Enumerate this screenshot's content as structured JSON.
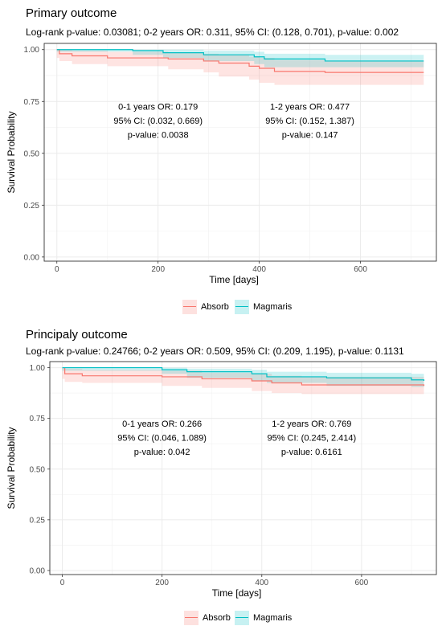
{
  "colors": {
    "absorb": "#F8766D",
    "magmaris": "#00BFC4",
    "grid": "#EBEBEB",
    "border": "#333333",
    "tick_text": "#4D4D4D"
  },
  "legend": {
    "items": [
      {
        "label": "Absorb",
        "color": "#F8766D"
      },
      {
        "label": "Magmaris",
        "color": "#00BFC4"
      }
    ]
  },
  "chart_data": [
    {
      "type": "line",
      "title": "Primary outcome",
      "subtitle": "Log-rank p-value: 0.03081;    0-2 years OR: 0.311, 95% CI: (0.128, 0.701), p-value: 0.002",
      "xlabel": "Time [days]",
      "ylabel": "Survival Probability",
      "xlim": [
        -25,
        750
      ],
      "ylim": [
        -0.02,
        1.03
      ],
      "xticks": [
        0,
        200,
        400,
        600
      ],
      "xtick_labels": [
        "0",
        "200",
        "400",
        "600"
      ],
      "yticks": [
        0,
        0.25,
        0.5,
        0.75,
        1.0
      ],
      "ytick_labels": [
        "0.00",
        "0.25",
        "0.50",
        "0.75",
        "1.00"
      ],
      "grid": true,
      "legend_position": "bottom",
      "annotations": [
        {
          "lines": [
            "0-1 years OR: 0.179",
            "95% CI: (0.032, 0.669)",
            "p-value: 0.0038"
          ],
          "x": 200,
          "y": 0.71
        },
        {
          "lines": [
            "1-2 years OR: 0.477",
            "95% CI: (0.152, 1.387)",
            "p-value: 0.147"
          ],
          "x": 500,
          "y": 0.71
        }
      ],
      "series": [
        {
          "name": "Absorb",
          "color": "#F8766D",
          "x": [
            0,
            5,
            30,
            100,
            220,
            290,
            320,
            380,
            400,
            430,
            530,
            725
          ],
          "y": [
            1.0,
            0.98,
            0.97,
            0.96,
            0.955,
            0.945,
            0.935,
            0.92,
            0.91,
            0.895,
            0.89,
            0.89
          ],
          "lower": [
            1.0,
            0.96,
            0.945,
            0.93,
            0.92,
            0.905,
            0.89,
            0.87,
            0.855,
            0.84,
            0.83,
            0.83
          ],
          "upper": [
            1.0,
            1.0,
            0.995,
            0.99,
            0.985,
            0.98,
            0.975,
            0.965,
            0.96,
            0.95,
            0.945,
            0.945
          ]
        },
        {
          "name": "Magmaris",
          "color": "#00BFC4",
          "x": [
            0,
            150,
            210,
            290,
            390,
            410,
            530,
            725
          ],
          "y": [
            1.0,
            0.995,
            0.985,
            0.975,
            0.965,
            0.955,
            0.945,
            0.945
          ],
          "lower": [
            1.0,
            0.99,
            0.975,
            0.96,
            0.945,
            0.93,
            0.915,
            0.915
          ],
          "upper": [
            1.0,
            1.0,
            1.0,
            0.995,
            0.99,
            0.98,
            0.975,
            0.975
          ]
        }
      ]
    },
    {
      "type": "line",
      "title": "Principaly outcome",
      "subtitle": "Log-rank p-value: 0.24766;    0-2 years OR: 0.509, 95% CI: (0.209, 1.195), p-value: 0.1131",
      "xlabel": "Time [days]",
      "ylabel": "Survival Probability",
      "xlim": [
        -25,
        750
      ],
      "ylim": [
        -0.02,
        1.03
      ],
      "xticks": [
        0,
        200,
        400,
        600
      ],
      "xtick_labels": [
        "0",
        "200",
        "400",
        "600"
      ],
      "yticks": [
        0,
        0.25,
        0.5,
        0.75,
        1.0
      ],
      "ytick_labels": [
        "0.00",
        "0.25",
        "0.50",
        "0.75",
        "1.00"
      ],
      "grid": true,
      "legend_position": "bottom",
      "annotations": [
        {
          "lines": [
            "0-1 years OR: 0.266",
            "95% CI: (0.046, 1.089)",
            "p-value: 0.042"
          ],
          "x": 200,
          "y": 0.71
        },
        {
          "lines": [
            "1-2 years OR: 0.769",
            "95% CI: (0.245, 2.414)",
            "p-value: 0.6161"
          ],
          "x": 500,
          "y": 0.71
        }
      ],
      "series": [
        {
          "name": "Absorb",
          "color": "#F8766D",
          "x": [
            0,
            5,
            40,
            200,
            280,
            380,
            420,
            480,
            725
          ],
          "y": [
            1.0,
            0.97,
            0.96,
            0.955,
            0.945,
            0.935,
            0.925,
            0.915,
            0.91
          ],
          "lower": [
            1.0,
            0.945,
            0.93,
            0.925,
            0.91,
            0.9,
            0.885,
            0.875,
            0.87
          ],
          "upper": [
            1.0,
            0.995,
            0.99,
            0.985,
            0.975,
            0.97,
            0.96,
            0.955,
            0.95
          ]
        },
        {
          "name": "Magmaris",
          "color": "#00BFC4",
          "x": [
            0,
            200,
            250,
            380,
            410,
            530,
            700,
            725
          ],
          "y": [
            1.0,
            0.99,
            0.98,
            0.97,
            0.955,
            0.95,
            0.94,
            0.935
          ],
          "lower": [
            1.0,
            0.985,
            0.97,
            0.95,
            0.935,
            0.925,
            0.91,
            0.905
          ],
          "upper": [
            1.0,
            1.0,
            0.995,
            0.99,
            0.98,
            0.975,
            0.97,
            0.965
          ]
        }
      ]
    }
  ]
}
